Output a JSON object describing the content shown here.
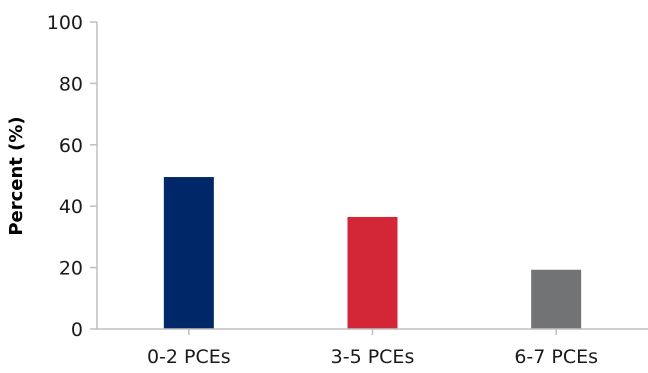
{
  "chart_data": {
    "type": "bar",
    "title": "",
    "xlabel": "",
    "ylabel": "Percent (%)",
    "categories": [
      "0-2 PCEs",
      "3-5 PCEs",
      "6-7 PCEs"
    ],
    "values": [
      49.5,
      36.5,
      19.3
    ],
    "colors": [
      "#002868",
      "#d32637",
      "#717375"
    ],
    "ylim": [
      0,
      100
    ],
    "yticks": [
      "0",
      "20",
      "40",
      "60",
      "80",
      "100"
    ],
    "grid": false,
    "legend": "none"
  }
}
